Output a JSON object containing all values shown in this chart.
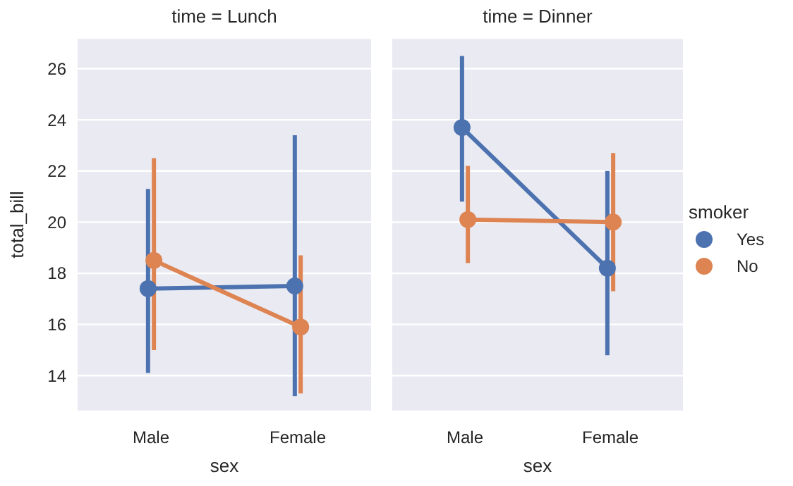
{
  "chart_data": [
    {
      "type": "line",
      "title": "time = Lunch",
      "xlabel": "sex",
      "ylabel": "total_bill",
      "categories": [
        "Male",
        "Female"
      ],
      "series": [
        {
          "color": "#4c72b0",
          "values": [
            17.4,
            17.5
          ],
          "errors": [
            [
              14.1,
              21.3
            ],
            [
              13.2,
              23.4
            ]
          ]
        },
        {
          "color": "#dd8452",
          "values": [
            18.5,
            15.9
          ],
          "errors": [
            [
              15.0,
              22.5
            ],
            [
              13.3,
              18.7
            ]
          ]
        }
      ],
      "ylim": [
        12.6,
        27.2
      ],
      "yticks": [
        14,
        16,
        18,
        20,
        22,
        24,
        26
      ],
      "grid": "y",
      "marker": "circle",
      "legend": false
    },
    {
      "type": "line",
      "title": "time = Dinner",
      "xlabel": "sex",
      "categories": [
        "Male",
        "Female"
      ],
      "series": [
        {
          "name": "Yes",
          "color": "#4c72b0",
          "values": [
            23.7,
            18.2
          ],
          "errors": [
            [
              20.8,
              26.5
            ],
            [
              14.8,
              22.0
            ]
          ]
        },
        {
          "name": "No",
          "color": "#dd8452",
          "values": [
            20.1,
            20.0
          ],
          "errors": [
            [
              18.4,
              22.2
            ],
            [
              17.3,
              22.7
            ]
          ]
        }
      ],
      "ylim": [
        12.6,
        27.2
      ],
      "yticks": [
        14,
        16,
        18,
        20,
        22,
        24,
        26
      ],
      "tick_labels": "x",
      "grid": "y",
      "marker": "circle",
      "legend": "right",
      "legend_title": "smoker"
    }
  ]
}
